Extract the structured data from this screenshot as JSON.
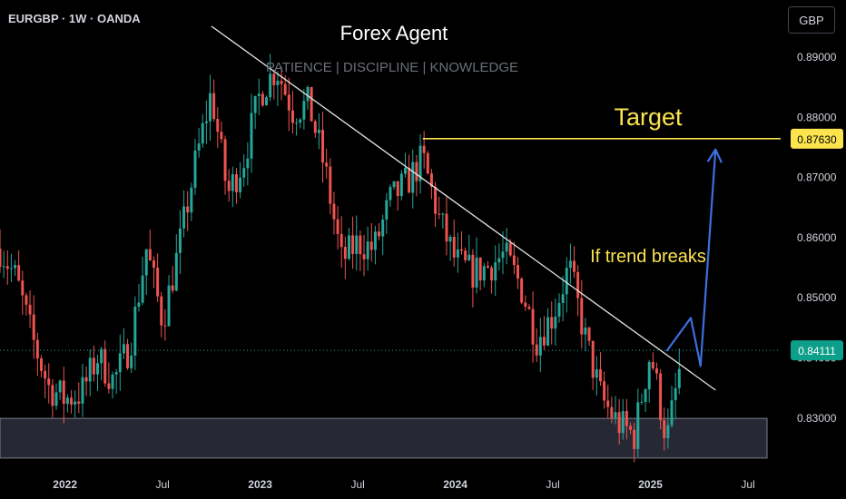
{
  "header": {
    "symbol": "EURGBP · 1W · OANDA",
    "currency": "GBP"
  },
  "chart_data": {
    "type": "candlestick",
    "symbol": "EURGBP",
    "timeframe": "1W",
    "x_ticks": [
      "2022",
      "Jul",
      "2023",
      "Jul",
      "2024",
      "Jul",
      "2025",
      "Jul"
    ],
    "y_ticks": [
      "0.89000",
      "0.88000",
      "0.87000",
      "0.86000",
      "0.85000",
      "0.84000",
      "0.83000"
    ],
    "ylim": [
      0.8235,
      0.8955
    ],
    "x_range": [
      "2021-09",
      "2025-08"
    ],
    "last_price": "0.84111",
    "target_price": "0.87630",
    "annotations": {
      "title": "Forex Agent",
      "subtitle": "PATIENCE | DISCIPLINE | KNOWLEDGE",
      "target_label": "Target",
      "trend_label": "If trend breaks"
    },
    "trendline": {
      "from": [
        "2022-10",
        0.895
      ],
      "to": [
        "2025-05",
        0.8345
      ]
    },
    "support_zone": [
      0.8232,
      0.8298
    ],
    "projection_path": [
      [
        "2025-02",
        0.841
      ],
      [
        "2025-03",
        0.8465
      ],
      [
        "2025-03",
        0.8385
      ],
      [
        "2025-05",
        0.8745
      ]
    ],
    "price_path": [
      [
        "2021-09",
        0.858
      ],
      [
        "2021-10",
        0.853
      ],
      [
        "2021-11",
        0.843
      ],
      [
        "2021-12",
        0.835
      ],
      [
        "2022-01",
        0.833
      ],
      [
        "2022-02",
        0.834
      ],
      [
        "2022-03",
        0.84
      ],
      [
        "2022-04",
        0.836
      ],
      [
        "2022-05",
        0.842
      ],
      [
        "2022-06",
        0.858
      ],
      [
        "2022-07",
        0.846
      ],
      [
        "2022-08",
        0.858
      ],
      [
        "2022-09",
        0.872
      ],
      [
        "2022-10",
        0.884
      ],
      [
        "2022-11",
        0.867
      ],
      [
        "2022-12",
        0.873
      ],
      [
        "2023-01",
        0.884
      ],
      [
        "2023-02",
        0.888
      ],
      [
        "2023-03",
        0.881
      ],
      [
        "2023-04",
        0.882
      ],
      [
        "2023-05",
        0.871
      ],
      [
        "2023-06",
        0.856
      ],
      [
        "2023-07",
        0.859
      ],
      [
        "2023-08",
        0.858
      ],
      [
        "2023-09",
        0.866
      ],
      [
        "2023-10",
        0.869
      ],
      [
        "2023-11",
        0.873
      ],
      [
        "2023-12",
        0.863
      ],
      [
        "2024-01",
        0.856
      ],
      [
        "2024-02",
        0.854
      ],
      [
        "2024-03",
        0.855
      ],
      [
        "2024-04",
        0.857
      ],
      [
        "2024-05",
        0.852
      ],
      [
        "2024-06",
        0.843
      ],
      [
        "2024-07",
        0.847
      ],
      [
        "2024-08",
        0.855
      ],
      [
        "2024-09",
        0.843
      ],
      [
        "2024-10",
        0.833
      ],
      [
        "2024-11",
        0.829
      ],
      [
        "2024-12",
        0.827
      ],
      [
        "2025-01",
        0.841
      ],
      [
        "2025-02",
        0.826
      ],
      [
        "2025-03",
        0.841
      ]
    ],
    "colors": {
      "up": "#26a69a",
      "down": "#ef5350",
      "trendline": "#e6e6e6",
      "target": "#fbe44e",
      "projection": "#3d6fe0",
      "zone": "#2a2e39",
      "text": "#d1d4dc"
    }
  }
}
